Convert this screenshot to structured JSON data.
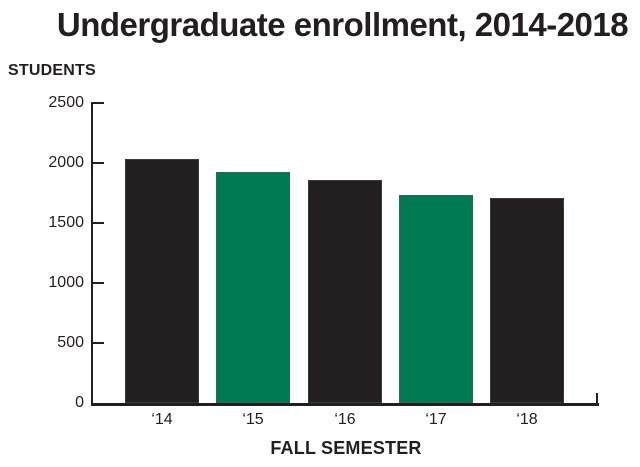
{
  "title": "Undergraduate enrollment, 2014-2018",
  "chart_data": {
    "type": "bar",
    "title": "Undergraduate enrollment, 2014-2018",
    "xlabel": "FALL SEMESTER",
    "ylabel": "STUDENTS",
    "categories": [
      "‘14",
      "‘15",
      "‘16",
      "‘17",
      "‘18"
    ],
    "values": [
      2030,
      1925,
      1860,
      1730,
      1705
    ],
    "ylim": [
      0,
      2500
    ],
    "yticks": [
      0,
      500,
      1000,
      1500,
      2000,
      2500
    ],
    "grid": false,
    "legend": "none",
    "bar_colors": [
      "#231f20",
      "#007a52",
      "#231f20",
      "#007a52",
      "#231f20"
    ],
    "colors": {
      "bar_black": "#231f20",
      "bar_green": "#007a52",
      "axis": "#231f20",
      "text": "#231f20",
      "background": "#ffffff"
    }
  }
}
